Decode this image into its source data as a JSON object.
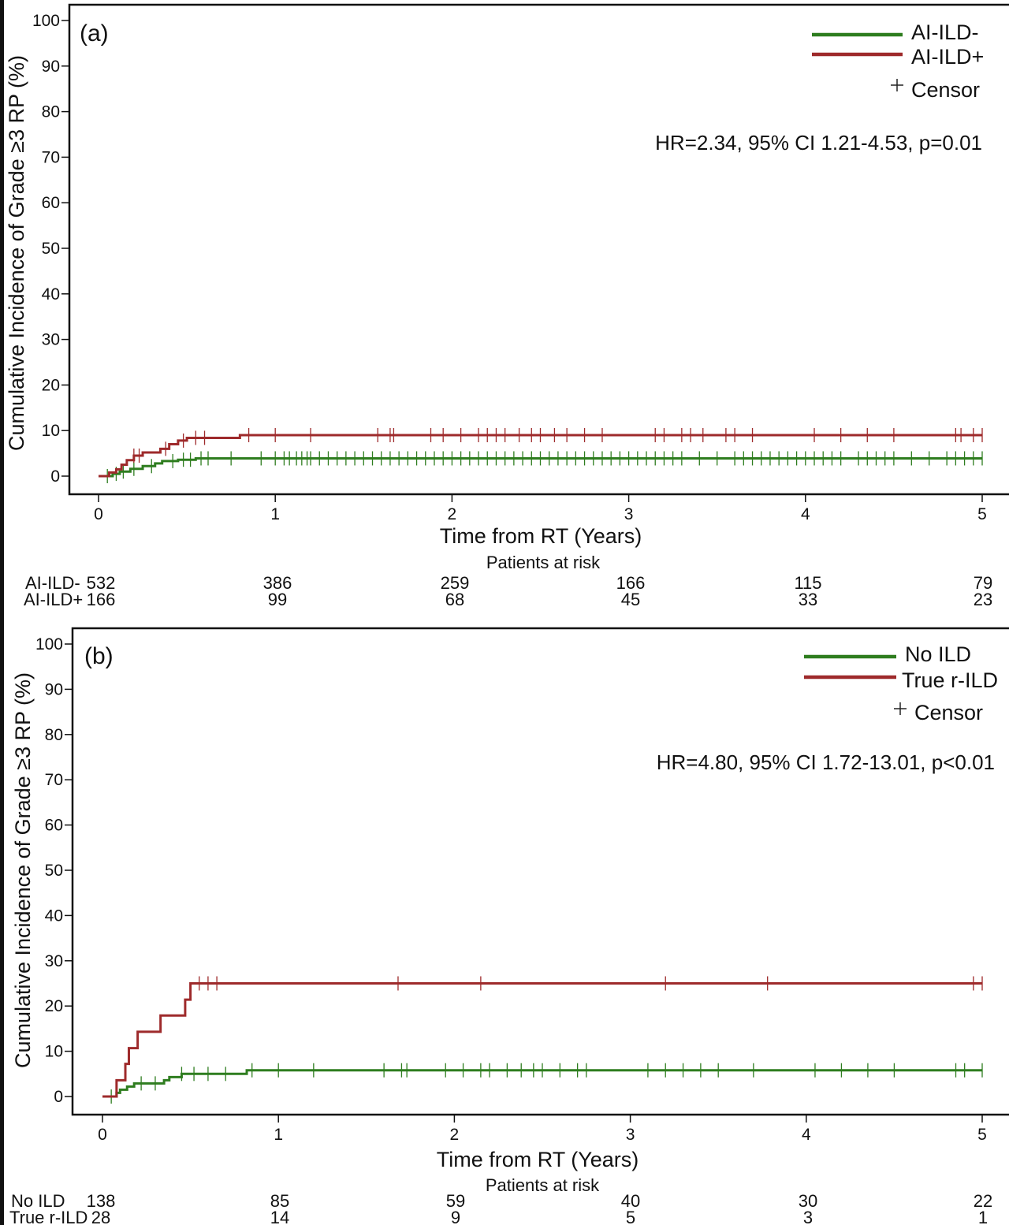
{
  "chart_data": [
    {
      "type": "line",
      "panel_label": "(a)",
      "title": "",
      "xlabel": "Time from RT (Years)",
      "ylabel": "Cumulative Incidence of Grade ≥3 RP (%)",
      "xlim": [
        0,
        5
      ],
      "ylim": [
        0,
        100
      ],
      "x_ticks": [
        "0",
        "1",
        "2",
        "3",
        "4",
        "5"
      ],
      "y_ticks": [
        "100",
        "90",
        "80",
        "70",
        "60",
        "50",
        "40",
        "30",
        "20",
        "10",
        "0"
      ],
      "grid": false,
      "legend_position": "top-right",
      "censor_label": "Censor",
      "annotation": "HR=2.34, 95% CI 1.21-4.53, p=0.01",
      "series": [
        {
          "name": "AI-ILD-",
          "color": "#2e7d1f",
          "steps": [
            [
              0,
              0
            ],
            [
              0.08,
              0.5
            ],
            [
              0.12,
              1.0
            ],
            [
              0.18,
              1.6
            ],
            [
              0.25,
              2.2
            ],
            [
              0.32,
              2.8
            ],
            [
              0.36,
              3.3
            ],
            [
              0.45,
              3.6
            ],
            [
              0.55,
              3.9
            ],
            [
              5,
              3.9
            ]
          ],
          "censor_times": [
            0.05,
            0.1,
            0.14,
            0.2,
            0.3,
            0.42,
            0.48,
            0.52,
            0.58,
            0.62,
            0.75,
            0.92,
            1.0,
            1.05,
            1.08,
            1.12,
            1.15,
            1.18,
            1.2,
            1.25,
            1.3,
            1.35,
            1.4,
            1.45,
            1.5,
            1.55,
            1.6,
            1.65,
            1.7,
            1.75,
            1.8,
            1.85,
            1.9,
            1.95,
            2.0,
            2.05,
            2.1,
            2.15,
            2.2,
            2.25,
            2.3,
            2.35,
            2.4,
            2.45,
            2.5,
            2.55,
            2.6,
            2.65,
            2.7,
            2.75,
            2.8,
            2.85,
            2.9,
            2.95,
            3.0,
            3.05,
            3.1,
            3.15,
            3.2,
            3.25,
            3.3,
            3.4,
            3.5,
            3.6,
            3.65,
            3.7,
            3.75,
            3.8,
            3.85,
            3.9,
            3.95,
            4.0,
            4.05,
            4.1,
            4.15,
            4.2,
            4.3,
            4.35,
            4.4,
            4.45,
            4.5,
            4.6,
            4.7,
            4.8,
            4.85,
            4.9,
            4.95,
            5.0
          ]
        },
        {
          "name": "AI-ILD+",
          "color": "#9e2a2b",
          "steps": [
            [
              0,
              0
            ],
            [
              0.06,
              0.8
            ],
            [
              0.1,
              1.5
            ],
            [
              0.13,
              2.5
            ],
            [
              0.16,
              3.5
            ],
            [
              0.2,
              4.5
            ],
            [
              0.25,
              5.2
            ],
            [
              0.35,
              6.0
            ],
            [
              0.4,
              7.0
            ],
            [
              0.45,
              7.8
            ],
            [
              0.5,
              8.4
            ],
            [
              0.8,
              9.0
            ],
            [
              5,
              9.0
            ]
          ],
          "censor_times": [
            0.2,
            0.23,
            0.38,
            0.48,
            0.55,
            0.6,
            0.85,
            1.0,
            1.2,
            1.58,
            1.65,
            1.67,
            1.88,
            1.95,
            2.05,
            2.15,
            2.2,
            2.25,
            2.3,
            2.38,
            2.45,
            2.5,
            2.58,
            2.65,
            2.75,
            2.85,
            3.15,
            3.2,
            3.3,
            3.35,
            3.42,
            3.55,
            3.6,
            3.7,
            4.05,
            4.2,
            4.35,
            4.5,
            4.85,
            4.88,
            4.95,
            5.0
          ]
        }
      ],
      "risk_table": {
        "title": "Patients at risk",
        "rows": [
          {
            "label": "AI-ILD-",
            "values": [
              "532",
              "386",
              "259",
              "166",
              "115",
              "79"
            ]
          },
          {
            "label": "AI-ILD+",
            "values": [
              "166",
              "99",
              "68",
              "45",
              "33",
              "23"
            ]
          }
        ]
      }
    },
    {
      "type": "line",
      "panel_label": "(b)",
      "title": "",
      "xlabel": "Time from RT (Years)",
      "ylabel": "Cumulative Incidence of Grade ≥3 RP (%)",
      "xlim": [
        0,
        5
      ],
      "ylim": [
        0,
        100
      ],
      "x_ticks": [
        "0",
        "1",
        "2",
        "3",
        "4",
        "5"
      ],
      "y_ticks": [
        "100",
        "90",
        "80",
        "70",
        "60",
        "50",
        "40",
        "30",
        "20",
        "10",
        "0"
      ],
      "grid": false,
      "legend_position": "top-right",
      "censor_label": "Censor",
      "annotation": "HR=4.80, 95% CI 1.72-13.01, p<0.01",
      "series": [
        {
          "name": "No ILD",
          "color": "#2e7d1f",
          "steps": [
            [
              0,
              0
            ],
            [
              0.08,
              0.8
            ],
            [
              0.1,
              1.5
            ],
            [
              0.14,
              2.2
            ],
            [
              0.18,
              2.9
            ],
            [
              0.35,
              3.6
            ],
            [
              0.38,
              4.3
            ],
            [
              0.45,
              5.0
            ],
            [
              0.82,
              5.8
            ],
            [
              5,
              5.8
            ]
          ],
          "censor_times": [
            0.05,
            0.22,
            0.3,
            0.45,
            0.52,
            0.6,
            0.7,
            0.85,
            1.0,
            1.2,
            1.6,
            1.7,
            1.73,
            1.95,
            2.05,
            2.15,
            2.2,
            2.3,
            2.38,
            2.45,
            2.5,
            2.6,
            2.7,
            2.75,
            3.1,
            3.2,
            3.3,
            3.4,
            3.5,
            3.7,
            4.05,
            4.2,
            4.35,
            4.5,
            4.85,
            4.9,
            5.0
          ]
        },
        {
          "name": "True r-ILD",
          "color": "#9e2a2b",
          "steps": [
            [
              0,
              0
            ],
            [
              0.08,
              3.6
            ],
            [
              0.13,
              7.2
            ],
            [
              0.15,
              10.7
            ],
            [
              0.2,
              14.3
            ],
            [
              0.33,
              17.9
            ],
            [
              0.47,
              21.4
            ],
            [
              0.5,
              25.0
            ],
            [
              5,
              25.0
            ]
          ],
          "censor_times": [
            0.55,
            0.6,
            0.65,
            1.68,
            2.15,
            3.2,
            3.78,
            4.95,
            5.0
          ]
        }
      ],
      "risk_table": {
        "title": "Patients at risk",
        "rows": [
          {
            "label": "No ILD",
            "values": [
              "138",
              "85",
              "59",
              "40",
              "30",
              "22"
            ]
          },
          {
            "label": "True r-ILD",
            "values": [
              "28",
              "14",
              "9",
              "5",
              "3",
              "1"
            ]
          }
        ]
      }
    }
  ]
}
